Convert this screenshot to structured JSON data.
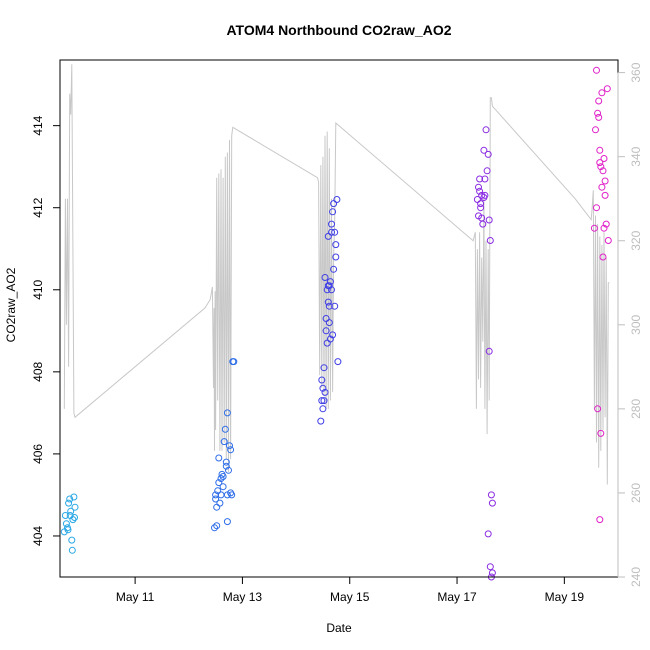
{
  "chart_data": {
    "type": "scatter",
    "title": "ATOM4 Northbound CO2raw_AO2",
    "xlabel": "Date",
    "ylabel": "CO2raw_AO2",
    "y2label": "",
    "xlim": [
      9.6,
      20.0
    ],
    "ylim": [
      403.0,
      415.6
    ],
    "y2lim": [
      240,
      363
    ],
    "x_ticks": [
      {
        "value": 11,
        "label": "May 11"
      },
      {
        "value": 13,
        "label": "May 13"
      },
      {
        "value": 15,
        "label": "May 15"
      },
      {
        "value": 17,
        "label": "May 17"
      },
      {
        "value": 19,
        "label": "May 19"
      }
    ],
    "y_ticks": [
      {
        "value": 404,
        "label": "404"
      },
      {
        "value": 406,
        "label": "406"
      },
      {
        "value": 408,
        "label": "408"
      },
      {
        "value": 410,
        "label": "410"
      },
      {
        "value": 412,
        "label": "412"
      },
      {
        "value": 414,
        "label": "414"
      }
    ],
    "y2_ticks": [
      {
        "value": 240,
        "label": "240"
      },
      {
        "value": 260,
        "label": "260"
      },
      {
        "value": 280,
        "label": "280"
      },
      {
        "value": 300,
        "label": "300"
      },
      {
        "value": 320,
        "label": "320"
      },
      {
        "value": 340,
        "label": "340"
      },
      {
        "value": 360,
        "label": "360"
      }
    ],
    "grid": false,
    "legend": "none",
    "colors": {
      "line": "#c8c8c8",
      "axis": "#000000",
      "axis_right": "#bebebe",
      "series": [
        "#29a8e6",
        "#2f6ee8",
        "#3f3fe6",
        "#8a2be2",
        "#e020c8"
      ]
    },
    "series": [
      {
        "color_index": 0,
        "points": [
          [
            9.68,
            404.1
          ],
          [
            9.7,
            404.5
          ],
          [
            9.72,
            404.3
          ],
          [
            9.74,
            404.2
          ],
          [
            9.76,
            404.8
          ],
          [
            9.78,
            404.9
          ],
          [
            9.8,
            404.6
          ],
          [
            9.82,
            403.9
          ],
          [
            9.84,
            404.4
          ],
          [
            9.86,
            404.95
          ],
          [
            9.88,
            404.7
          ],
          [
            9.83,
            403.65
          ],
          [
            9.75,
            404.15
          ],
          [
            9.79,
            404.5
          ],
          [
            9.87,
            404.45
          ]
        ]
      },
      {
        "color_index": 1,
        "points": [
          [
            12.48,
            404.2
          ],
          [
            12.5,
            404.9
          ],
          [
            12.52,
            404.7
          ],
          [
            12.54,
            405.1
          ],
          [
            12.56,
            405.3
          ],
          [
            12.58,
            404.8
          ],
          [
            12.6,
            405.0
          ],
          [
            12.62,
            405.5
          ],
          [
            12.64,
            405.2
          ],
          [
            12.66,
            406.3
          ],
          [
            12.68,
            406.6
          ],
          [
            12.7,
            405.8
          ],
          [
            12.72,
            405.0
          ],
          [
            12.74,
            405.6
          ],
          [
            12.76,
            406.2
          ],
          [
            12.78,
            406.1
          ],
          [
            12.8,
            405.0
          ],
          [
            12.82,
            408.25
          ],
          [
            12.84,
            408.25
          ],
          [
            12.72,
            407.0
          ],
          [
            12.52,
            404.25
          ],
          [
            12.72,
            404.35
          ],
          [
            12.5,
            405.0
          ],
          [
            12.56,
            405.9
          ],
          [
            12.6,
            405.4
          ],
          [
            12.64,
            405.45
          ],
          [
            12.7,
            405.7
          ],
          [
            12.78,
            405.05
          ]
        ]
      },
      {
        "color_index": 2,
        "points": [
          [
            14.46,
            406.8
          ],
          [
            14.48,
            407.3
          ],
          [
            14.5,
            407.6
          ],
          [
            14.52,
            408.1
          ],
          [
            14.54,
            410.3
          ],
          [
            14.56,
            409.0
          ],
          [
            14.58,
            410.0
          ],
          [
            14.6,
            411.3
          ],
          [
            14.62,
            409.6
          ],
          [
            14.64,
            410.2
          ],
          [
            14.66,
            411.6
          ],
          [
            14.68,
            411.9
          ],
          [
            14.7,
            412.1
          ],
          [
            14.72,
            411.4
          ],
          [
            14.74,
            410.8
          ],
          [
            14.76,
            412.2
          ],
          [
            14.78,
            408.25
          ],
          [
            14.5,
            407.1
          ],
          [
            14.54,
            407.5
          ],
          [
            14.56,
            409.3
          ],
          [
            14.6,
            410.1
          ],
          [
            14.62,
            409.2
          ],
          [
            14.66,
            410.0
          ],
          [
            14.68,
            408.9
          ],
          [
            14.72,
            409.6
          ],
          [
            14.74,
            411.1
          ],
          [
            14.58,
            408.7
          ],
          [
            14.64,
            408.8
          ],
          [
            14.66,
            411.4
          ],
          [
            14.52,
            407.3
          ],
          [
            14.48,
            407.8
          ],
          [
            14.6,
            409.7
          ],
          [
            14.7,
            410.5
          ],
          [
            14.62,
            410.1
          ]
        ]
      },
      {
        "color_index": 3,
        "points": [
          [
            17.38,
            412.2
          ],
          [
            17.4,
            412.5
          ],
          [
            17.42,
            412.7
          ],
          [
            17.44,
            412.0
          ],
          [
            17.46,
            412.3
          ],
          [
            17.48,
            411.6
          ],
          [
            17.5,
            413.4
          ],
          [
            17.52,
            412.3
          ],
          [
            17.54,
            413.9
          ],
          [
            17.56,
            412.9
          ],
          [
            17.58,
            413.3
          ],
          [
            17.6,
            411.7
          ],
          [
            17.62,
            411.2
          ],
          [
            17.64,
            405.0
          ],
          [
            17.66,
            404.8
          ],
          [
            17.58,
            404.05
          ],
          [
            17.62,
            403.25
          ],
          [
            17.66,
            403.1
          ],
          [
            17.64,
            403.0
          ],
          [
            17.6,
            408.5
          ],
          [
            17.42,
            412.4
          ],
          [
            17.46,
            411.75
          ],
          [
            17.52,
            412.7
          ],
          [
            17.5,
            412.25
          ],
          [
            17.44,
            412.1
          ],
          [
            17.4,
            411.8
          ]
        ]
      },
      {
        "color_index": 4,
        "points": [
          [
            19.6,
            415.35
          ],
          [
            19.62,
            414.3
          ],
          [
            19.64,
            414.2
          ],
          [
            19.66,
            413.4
          ],
          [
            19.68,
            413.0
          ],
          [
            19.7,
            412.5
          ],
          [
            19.72,
            412.9
          ],
          [
            19.74,
            411.5
          ],
          [
            19.76,
            412.3
          ],
          [
            19.78,
            411.6
          ],
          [
            19.8,
            414.9
          ],
          [
            19.82,
            411.2
          ],
          [
            19.64,
            414.6
          ],
          [
            19.7,
            414.8
          ],
          [
            19.58,
            413.9
          ],
          [
            19.6,
            412.0
          ],
          [
            19.66,
            413.1
          ],
          [
            19.72,
            410.8
          ],
          [
            19.74,
            413.2
          ],
          [
            19.62,
            407.1
          ],
          [
            19.68,
            406.5
          ],
          [
            19.66,
            404.4
          ],
          [
            19.76,
            412.65
          ],
          [
            19.56,
            411.5
          ]
        ]
      }
    ],
    "line_series": {
      "axis": "right",
      "points": [
        [
          9.68,
          280
        ],
        [
          9.7,
          330
        ],
        [
          9.72,
          300
        ],
        [
          9.74,
          330
        ],
        [
          9.76,
          290
        ],
        [
          9.78,
          355
        ],
        [
          9.8,
          350
        ],
        [
          9.82,
          362
        ],
        [
          9.86,
          279
        ],
        [
          9.88,
          278
        ],
        [
          12.3,
          304
        ],
        [
          12.4,
          306
        ],
        [
          12.44,
          309
        ],
        [
          12.46,
          285
        ],
        [
          12.47,
          304
        ],
        [
          12.48,
          270
        ],
        [
          12.49,
          308
        ],
        [
          12.5,
          275
        ],
        [
          12.52,
          335
        ],
        [
          12.54,
          282
        ],
        [
          12.56,
          336
        ],
        [
          12.58,
          270
        ],
        [
          12.6,
          337
        ],
        [
          12.62,
          270
        ],
        [
          12.64,
          335
        ],
        [
          12.66,
          272
        ],
        [
          12.68,
          340
        ],
        [
          12.7,
          268
        ],
        [
          12.72,
          341
        ],
        [
          12.74,
          265
        ],
        [
          12.76,
          344
        ],
        [
          12.78,
          268
        ],
        [
          12.8,
          345
        ],
        [
          12.82,
          347
        ],
        [
          14.4,
          335
        ],
        [
          14.42,
          334
        ],
        [
          14.44,
          288
        ],
        [
          14.46,
          338
        ],
        [
          14.48,
          285
        ],
        [
          14.5,
          340
        ],
        [
          14.52,
          283
        ],
        [
          14.54,
          345
        ],
        [
          14.56,
          280
        ],
        [
          14.58,
          346
        ],
        [
          14.6,
          280
        ],
        [
          14.62,
          342
        ],
        [
          14.64,
          282
        ],
        [
          14.66,
          330
        ],
        [
          14.68,
          284
        ],
        [
          14.7,
          316
        ],
        [
          14.72,
          325
        ],
        [
          14.74,
          348
        ],
        [
          17.3,
          320
        ],
        [
          17.34,
          322
        ],
        [
          17.36,
          280
        ],
        [
          17.38,
          318
        ],
        [
          17.4,
          287
        ],
        [
          17.42,
          322
        ],
        [
          17.44,
          285
        ],
        [
          17.46,
          316
        ],
        [
          17.48,
          296
        ],
        [
          17.5,
          330
        ],
        [
          17.52,
          280
        ],
        [
          17.54,
          320
        ],
        [
          17.56,
          274
        ],
        [
          17.58,
          318
        ],
        [
          17.6,
          282
        ],
        [
          17.62,
          354
        ],
        [
          17.64,
          354
        ],
        [
          17.66,
          352
        ],
        [
          19.2,
          330
        ],
        [
          19.5,
          325
        ],
        [
          19.52,
          328
        ],
        [
          19.54,
          332
        ],
        [
          19.56,
          280
        ],
        [
          19.58,
          326
        ],
        [
          19.6,
          272
        ],
        [
          19.62,
          324
        ],
        [
          19.64,
          266
        ],
        [
          19.66,
          321
        ],
        [
          19.68,
          270
        ],
        [
          19.7,
          319
        ],
        [
          19.72,
          275
        ],
        [
          19.74,
          322
        ],
        [
          19.76,
          278
        ],
        [
          19.78,
          316
        ],
        [
          19.8,
          262
        ],
        [
          19.82,
          310
        ],
        [
          19.84,
          310
        ]
      ]
    }
  }
}
